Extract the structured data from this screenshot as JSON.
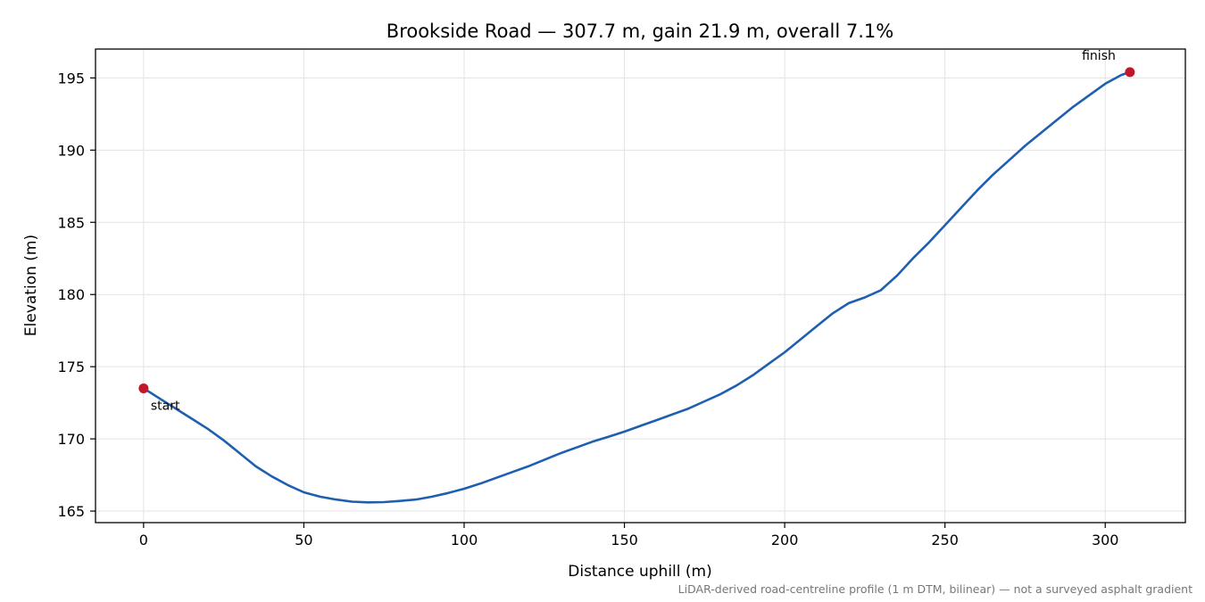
{
  "chart_data": {
    "type": "line",
    "title": "Brookside Road — 307.7 m, gain 21.9 m, overall 7.1%",
    "xlabel": "Distance uphill (m)",
    "ylabel": "Elevation (m)",
    "xlim": [
      -15,
      325
    ],
    "ylim": [
      164.2,
      197.0
    ],
    "xticks": [
      0,
      50,
      100,
      150,
      200,
      250,
      300
    ],
    "yticks": [
      165,
      170,
      175,
      180,
      185,
      190,
      195
    ],
    "grid": true,
    "line_color": "#1f5fb0",
    "marker_color": "#c0182a",
    "series": [
      {
        "x": [
          0,
          5,
          10,
          15,
          20,
          25,
          30,
          35,
          40,
          45,
          50,
          55,
          60,
          65,
          70,
          75,
          80,
          85,
          90,
          95,
          100,
          105,
          110,
          115,
          120,
          125,
          130,
          135,
          140,
          145,
          150,
          155,
          160,
          165,
          170,
          175,
          180,
          185,
          190,
          195,
          200,
          205,
          210,
          215,
          220,
          225,
          230,
          235,
          240,
          245,
          250,
          255,
          260,
          265,
          270,
          275,
          280,
          285,
          290,
          295,
          300,
          305,
          307.7
        ],
        "y": [
          173.5,
          172.8,
          172.1,
          171.4,
          170.7,
          169.9,
          169.0,
          168.1,
          167.4,
          166.8,
          166.3,
          166.0,
          165.8,
          165.65,
          165.6,
          165.62,
          165.7,
          165.8,
          166.0,
          166.25,
          166.55,
          166.9,
          167.3,
          167.7,
          168.1,
          168.55,
          169.0,
          169.4,
          169.8,
          170.15,
          170.5,
          170.9,
          171.3,
          171.7,
          172.1,
          172.6,
          173.1,
          173.7,
          174.4,
          175.2,
          176.0,
          176.9,
          177.8,
          178.7,
          179.4,
          179.8,
          180.3,
          181.3,
          182.5,
          183.6,
          184.8,
          186.0,
          187.2,
          188.3,
          189.3,
          190.3,
          191.2,
          192.1,
          193.0,
          193.8,
          194.6,
          195.2,
          195.4
        ]
      }
    ],
    "annotations": [
      {
        "label": "start",
        "x": 0,
        "y": 173.5
      },
      {
        "label": "finish",
        "x": 307.7,
        "y": 195.4
      }
    ],
    "footnote": "LiDAR-derived road-centreline profile (1 m DTM, bilinear) — not a surveyed asphalt gradient"
  }
}
